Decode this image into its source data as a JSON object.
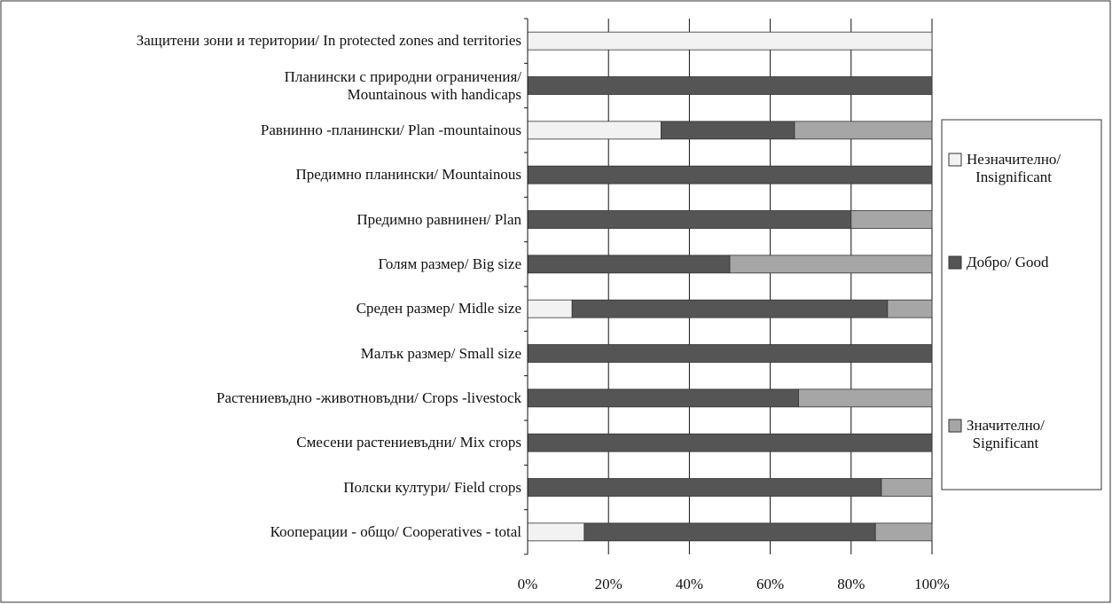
{
  "chart_data": {
    "type": "stacked_barh",
    "categories": [
      "Защитени зони и територии/ In protected zones and territories",
      "Планински с природни ограничения/\nMountainous with  handicaps",
      "Равнинно -планински/ Plan -mountainous",
      "Предимно планински/  Mountainous",
      "Предимно равнинен/ Plan",
      "Голям размер/ Big size",
      "Среден размер/ Midle size",
      "Малък размер/ Small size",
      "Растениевъдно -животновъдни/ Crops -livestock",
      "Смесени растениевъдни/  Mix crops",
      "Полски култури/  Field crops",
      "Кооперации - общо/ Cooperatives - total"
    ],
    "series": [
      {
        "name": "Незначително/\nInsignificant",
        "color": "#f2f2f2",
        "values": [
          100,
          0,
          33,
          0,
          0,
          0,
          11,
          0,
          0,
          0,
          0,
          14
        ]
      },
      {
        "name": "Добро/ Good",
        "color": "#555555",
        "values": [
          0,
          100,
          33,
          100,
          80,
          50,
          78,
          100,
          67,
          100,
          87.5,
          72
        ]
      },
      {
        "name": "Значително/\nSignificant",
        "color": "#a6a6a6",
        "values": [
          0,
          0,
          34,
          0,
          20,
          50,
          11,
          0,
          33,
          0,
          12.5,
          14
        ]
      }
    ],
    "xlim": [
      0,
      100
    ],
    "xticks": [
      {
        "value": 0,
        "label": "0%"
      },
      {
        "value": 20,
        "label": "20%"
      },
      {
        "value": 40,
        "label": "40%"
      },
      {
        "value": 60,
        "label": "60%"
      },
      {
        "value": 80,
        "label": "80%"
      },
      {
        "value": 100,
        "label": "100%"
      }
    ],
    "grid": true
  }
}
